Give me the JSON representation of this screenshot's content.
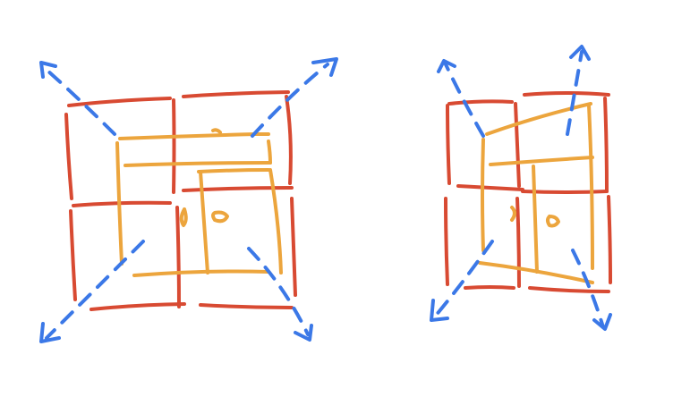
{
  "colors": {
    "background": "#ffffff",
    "grid_frame": "#d84a32",
    "inner_panel": "#eca53d",
    "expansion_arrows": "#3b78e7"
  },
  "sketches": [
    {
      "id": "left-sketch",
      "grid": "2x2",
      "arrows": 4,
      "handles": 2
    },
    {
      "id": "right-sketch",
      "grid": "2x2",
      "arrows": 4,
      "handles": 2
    }
  ]
}
